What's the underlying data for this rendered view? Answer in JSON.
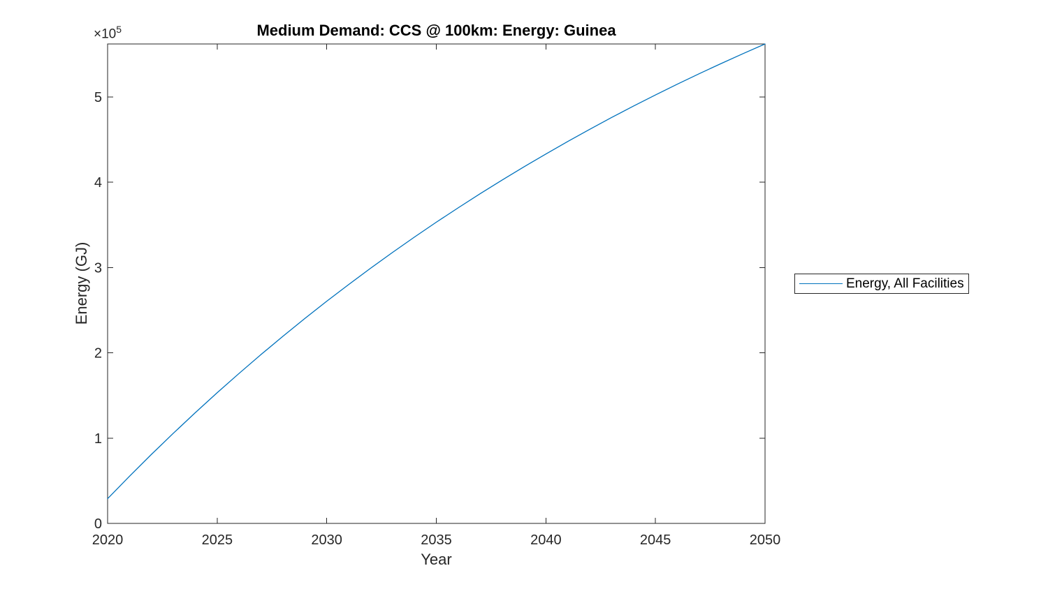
{
  "figure": {
    "title": "Medium Demand: CCS @ 100km: Energy: Guinea",
    "y_axis_multiplier_base": "×10",
    "y_axis_multiplier_exponent": "5"
  },
  "legend": {
    "position": "right-outside",
    "items": [
      {
        "label": "Energy, All Facilities",
        "color": "#0072BD"
      }
    ]
  },
  "chart_data": {
    "type": "line",
    "title": "Medium Demand: CCS @ 100km: Energy: Guinea",
    "xlabel": "Year",
    "ylabel": "Energy (GJ)",
    "x": [
      2020,
      2021,
      2022,
      2023,
      2024,
      2025,
      2026,
      2027,
      2028,
      2029,
      2030,
      2031,
      2032,
      2033,
      2034,
      2035,
      2036,
      2037,
      2038,
      2039,
      2040,
      2041,
      2042,
      2043,
      2044,
      2045,
      2046,
      2047,
      2048,
      2049,
      2050
    ],
    "series": [
      {
        "name": "Energy, All Facilities",
        "color": "#0072BD",
        "values": [
          29000,
          55300,
          80900,
          105700,
          129800,
          153200,
          175900,
          198000,
          219400,
          240300,
          260500,
          280100,
          299200,
          317700,
          335700,
          353200,
          370100,
          386600,
          402600,
          418100,
          433200,
          447900,
          462100,
          476000,
          489400,
          502400,
          515100,
          527400,
          539300,
          550900,
          562200
        ]
      }
    ],
    "xlim": [
      2020,
      2050
    ],
    "ylim": [
      0,
      562200
    ],
    "xticks": [
      2020,
      2025,
      2030,
      2035,
      2040,
      2045,
      2050
    ],
    "yticks": [
      0,
      100000,
      200000,
      300000,
      400000,
      500000
    ],
    "ytick_labels": [
      "0",
      "1",
      "2",
      "3",
      "4",
      "5"
    ],
    "y_multiplier_exponent": 5,
    "grid": false,
    "box": true,
    "tick_direction": "in",
    "axis_color": "#262626",
    "background": "#ffffff",
    "legend_position": "right-outside"
  }
}
